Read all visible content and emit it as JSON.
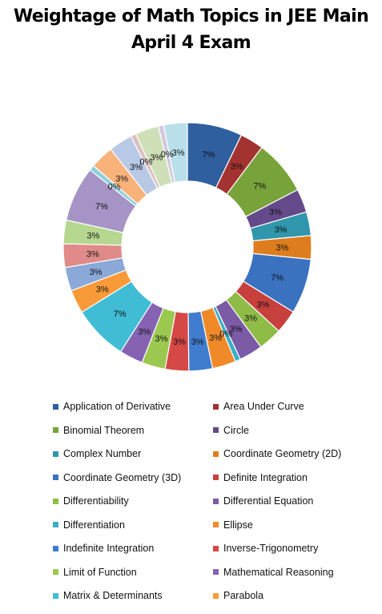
{
  "chart_data": {
    "type": "pie",
    "title": "Weightage of Math Topics in JEE Main April 4 Exam",
    "donut": true,
    "legend_position": "bottom",
    "slices": [
      {
        "label": "Application of Derivative",
        "value": 7,
        "data_label": "7%",
        "color": "#2f5f9e"
      },
      {
        "label": "Area Under Curve",
        "value": 3,
        "data_label": "3%",
        "color": "#a33330"
      },
      {
        "label": "Binomial Theorem",
        "value": 7,
        "data_label": "7%",
        "color": "#78a33a"
      },
      {
        "label": "Circle",
        "value": 3,
        "data_label": "3%",
        "color": "#644a8a"
      },
      {
        "label": "Complex Number",
        "value": 3,
        "data_label": "3%",
        "color": "#2f96ac"
      },
      {
        "label": "Coordinate Geometry (2D)",
        "value": 3,
        "data_label": "3%",
        "color": "#de7d1d"
      },
      {
        "label": "Coordinate Geometry (3D)",
        "value": 7,
        "data_label": "7%",
        "color": "#3a72c0"
      },
      {
        "label": "Definite Integration",
        "value": 3,
        "data_label": "3%",
        "color": "#c8403e"
      },
      {
        "label": "Differentiability",
        "value": 3,
        "data_label": "3%",
        "color": "#8fbb47"
      },
      {
        "label": "Differential Equation",
        "value": 3,
        "data_label": "3%",
        "color": "#7b5aa6"
      },
      {
        "label": "Differentiation",
        "value": 0,
        "data_label": "0%",
        "color": "#3aafc8"
      },
      {
        "label": "Ellipse",
        "value": 3,
        "data_label": "3%",
        "color": "#f08a28"
      },
      {
        "label": "Indefinite Integration",
        "value": 3,
        "data_label": "3%",
        "color": "#3f7ccd"
      },
      {
        "label": "Inverse-Trigonometry",
        "value": 3,
        "data_label": "3%",
        "color": "#d54845"
      },
      {
        "label": "Limit of Function",
        "value": 3,
        "data_label": "3%",
        "color": "#9bc84f"
      },
      {
        "label": "Mathematical Reasoning",
        "value": 3,
        "data_label": "3%",
        "color": "#8563b2"
      },
      {
        "label": "Matrix & Determinants",
        "value": 7,
        "data_label": "7%",
        "color": "#40bcd5"
      },
      {
        "label": "Parabola",
        "value": 3,
        "data_label": "3%",
        "color": "#f99a38"
      },
      {
        "label": "",
        "value": 3,
        "data_label": "3%",
        "color": "#8aa8d8"
      },
      {
        "label": "",
        "value": 3,
        "data_label": "3%",
        "color": "#e08b89"
      },
      {
        "label": "",
        "value": 3,
        "data_label": "3%",
        "color": "#b6d78f"
      },
      {
        "label": "",
        "value": 7,
        "data_label": "7%",
        "color": "#a694c6"
      },
      {
        "label": "",
        "value": 0,
        "data_label": "0%",
        "color": "#8ed0e0"
      },
      {
        "label": "",
        "value": 3,
        "data_label": "3%",
        "color": "#f9b27a"
      },
      {
        "label": "",
        "value": 3,
        "data_label": "3%",
        "color": "#b8c9e6"
      },
      {
        "label": "",
        "value": 0,
        "data_label": "0%",
        "color": "#dcc0bf"
      },
      {
        "label": "",
        "value": 3,
        "data_label": "3%",
        "color": "#cfe0b8"
      },
      {
        "label": "",
        "value": 0,
        "data_label": "0%",
        "color": "#d2c8df"
      },
      {
        "label": "",
        "value": 3,
        "data_label": "3%",
        "color": "#b9e0ea"
      }
    ]
  }
}
